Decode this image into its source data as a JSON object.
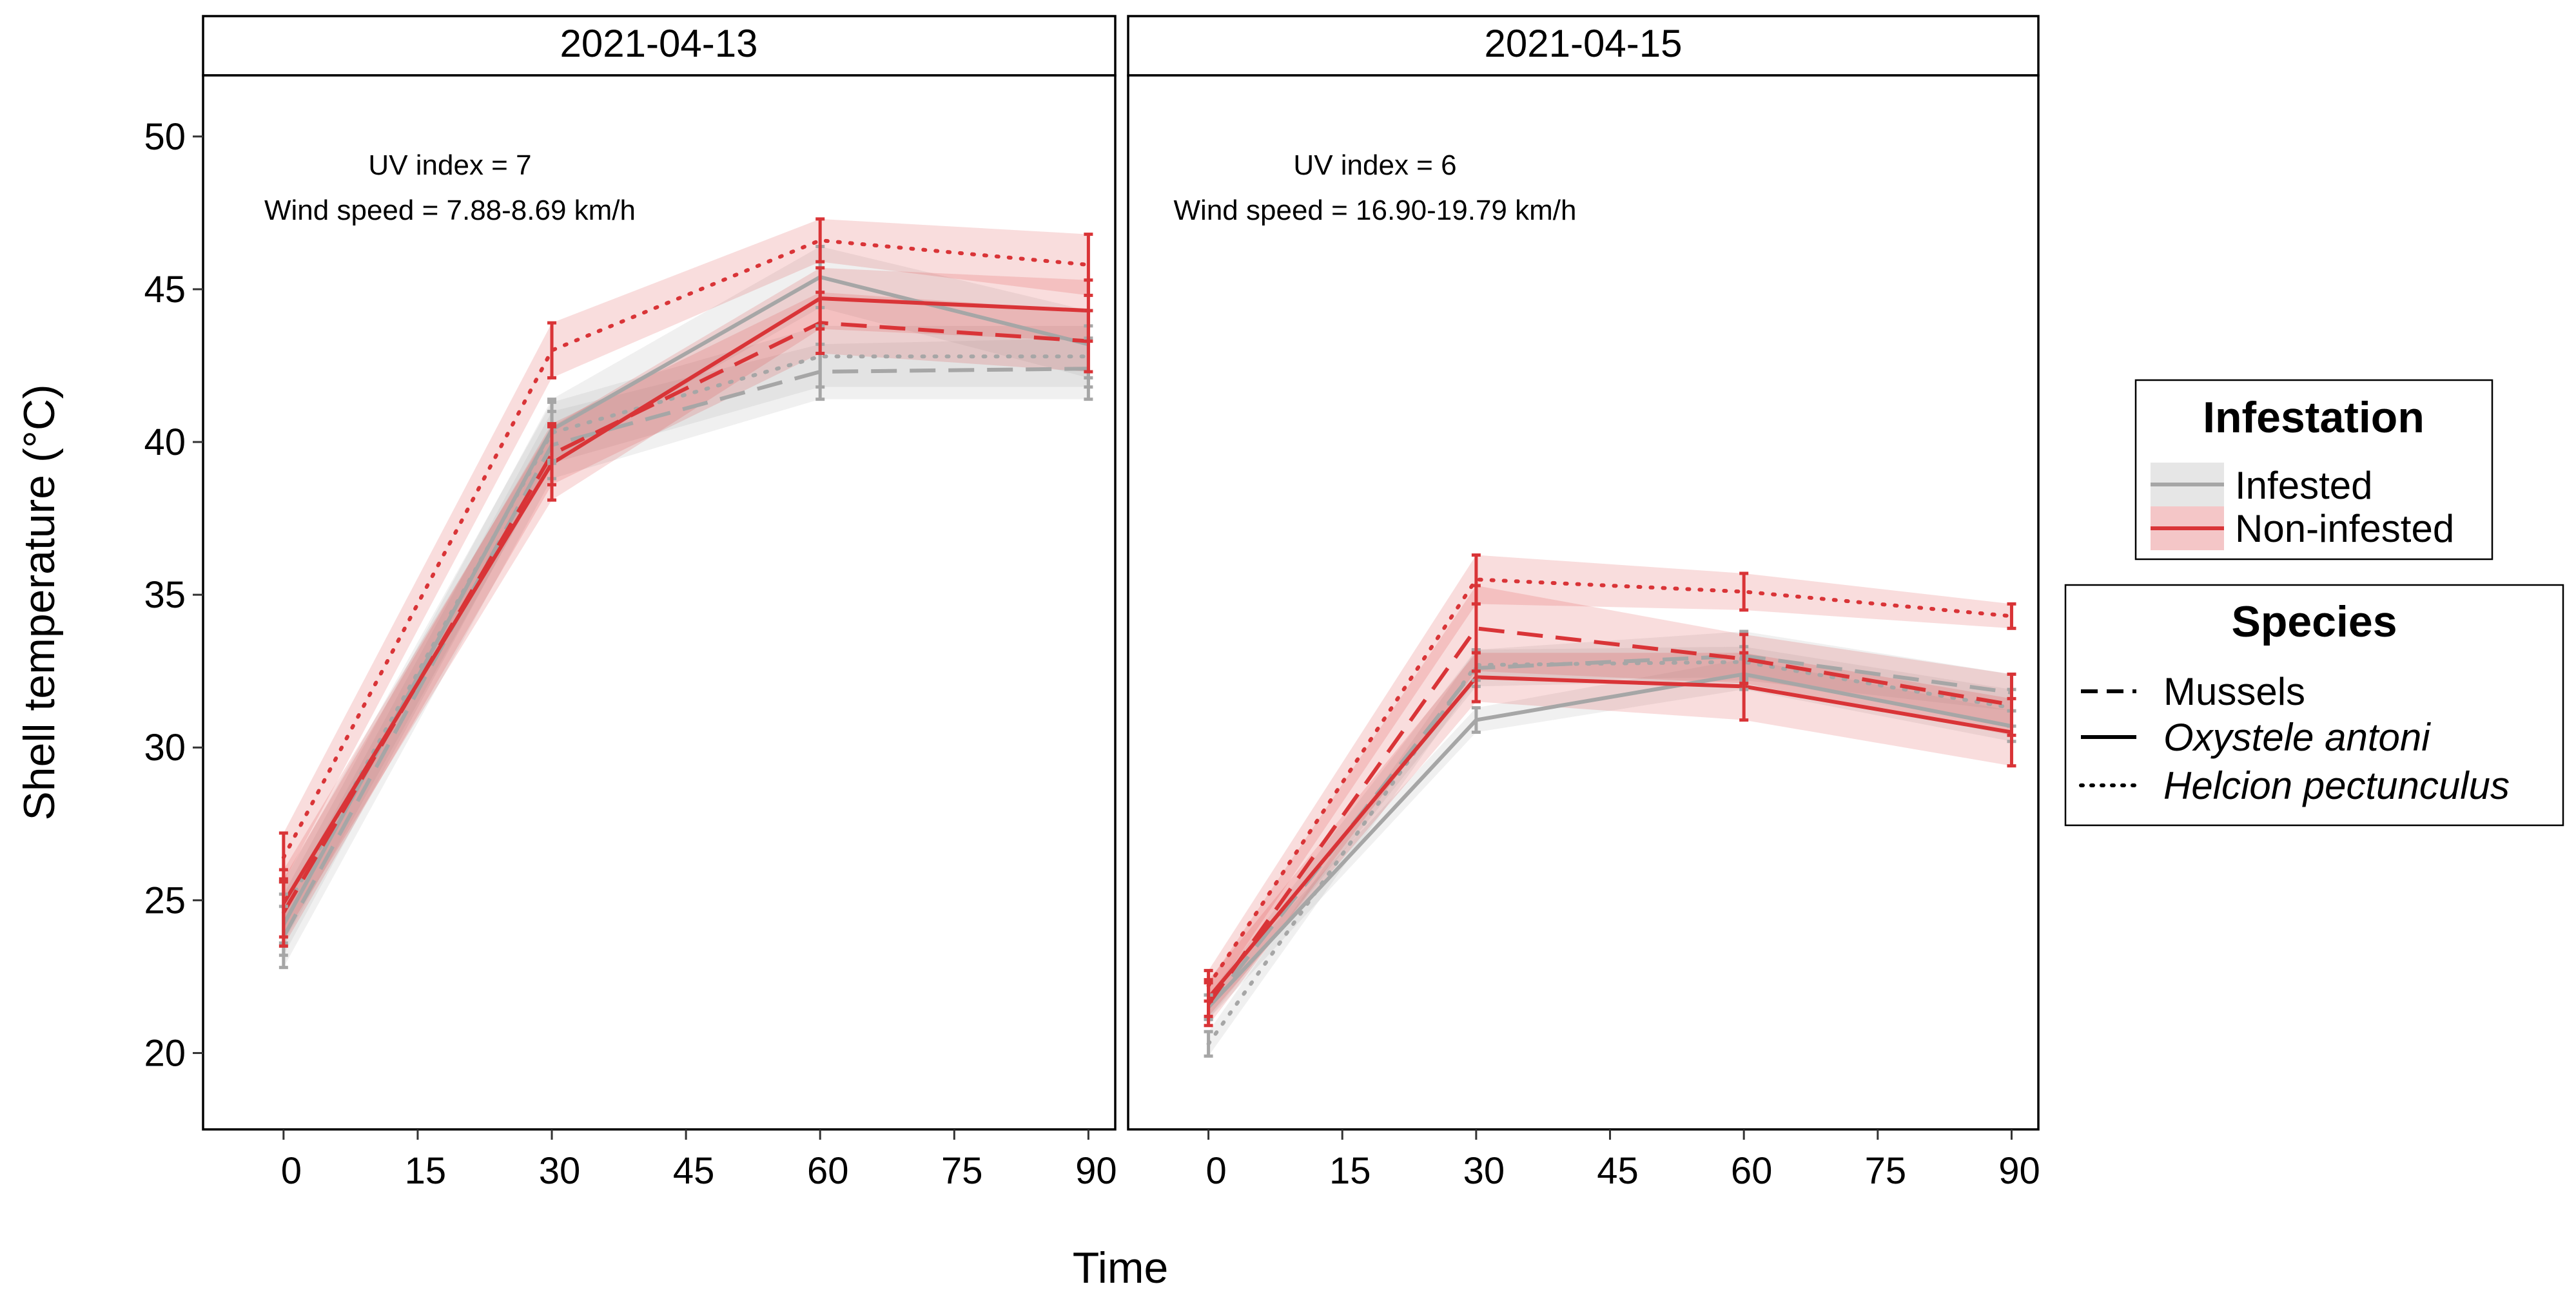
{
  "chart_data": {
    "type": "line",
    "ylabel": "Shell temperature (°C)",
    "xlabel": "Time",
    "xlim": [
      -9,
      93
    ],
    "ylim": [
      17.5,
      52
    ],
    "xticks": [
      0,
      15,
      30,
      45,
      60,
      75,
      90
    ],
    "yticks": [
      20,
      25,
      30,
      35,
      40,
      45,
      50
    ],
    "colors": {
      "Infested": "#a6a6a6",
      "Non-infested": "#d93437"
    },
    "legends": {
      "infestation": {
        "title": "Infestation",
        "entries": [
          "Infested",
          "Non-infested"
        ]
      },
      "species": {
        "title": "Species",
        "entries": [
          {
            "label": "Mussels",
            "italic": false,
            "linetype": "dashed"
          },
          {
            "label": "Oxystele antoni",
            "italic": true,
            "linetype": "solid"
          },
          {
            "label": "Helcion pectunculus",
            "italic": true,
            "linetype": "dotted"
          }
        ]
      }
    },
    "panels": [
      {
        "title": "2021-04-13",
        "annotations": [
          "UV index = 7",
          "Wind speed = 7.88-8.69 km/h"
        ],
        "series": [
          {
            "infestation": "Infested",
            "species": "Mussels",
            "x": [
              0,
              30,
              60,
              90
            ],
            "y": [
              23.8,
              39.9,
              42.3,
              42.4
            ],
            "ci": [
              1.0,
              1.1,
              0.9,
              1.0
            ]
          },
          {
            "infestation": "Infested",
            "species": "Oxystele antoni",
            "x": [
              0,
              30,
              60,
              90
            ],
            "y": [
              24.2,
              40.4,
              45.4,
              43.2
            ],
            "ci": [
              1.0,
              1.0,
              1.0,
              1.1
            ]
          },
          {
            "infestation": "Infested",
            "species": "Helcion pectunculus",
            "x": [
              0,
              30,
              60,
              90
            ],
            "y": [
              24.6,
              40.3,
              42.8,
              42.8
            ],
            "ci": [
              1.0,
              1.0,
              1.0,
              1.0
            ]
          },
          {
            "infestation": "Non-infested",
            "species": "Mussels",
            "x": [
              0,
              30,
              60,
              90
            ],
            "y": [
              24.6,
              39.6,
              43.9,
              43.3
            ],
            "ci": [
              1.1,
              1.0,
              1.0,
              1.0
            ]
          },
          {
            "infestation": "Non-infested",
            "species": "Oxystele antoni",
            "x": [
              0,
              30,
              60,
              90
            ],
            "y": [
              24.9,
              39.3,
              44.7,
              44.3
            ],
            "ci": [
              1.1,
              1.2,
              1.0,
              1.0
            ]
          },
          {
            "infestation": "Non-infested",
            "species": "Helcion pectunculus",
            "x": [
              0,
              30,
              60,
              90
            ],
            "y": [
              26.4,
              43.0,
              46.6,
              45.8
            ],
            "ci": [
              0.8,
              0.9,
              0.7,
              1.0
            ]
          }
        ]
      },
      {
        "title": "2021-04-15",
        "annotations": [
          "UV index = 6",
          "Wind speed = 16.90-19.79 km/h"
        ],
        "series": [
          {
            "infestation": "Infested",
            "species": "Mussels",
            "x": [
              0,
              30,
              60,
              90
            ],
            "y": [
              21.5,
              32.6,
              33.0,
              31.8
            ],
            "ci": [
              0.4,
              0.6,
              0.8,
              0.6
            ]
          },
          {
            "infestation": "Infested",
            "species": "Oxystele antoni",
            "x": [
              0,
              30,
              60,
              90
            ],
            "y": [
              21.5,
              30.9,
              32.4,
              30.7
            ],
            "ci": [
              0.4,
              0.4,
              0.5,
              0.5
            ]
          },
          {
            "infestation": "Infested",
            "species": "Helcion pectunculus",
            "x": [
              0,
              30,
              60,
              90
            ],
            "y": [
              20.3,
              32.7,
              32.8,
              31.3
            ],
            "ci": [
              0.4,
              0.5,
              0.5,
              0.6
            ]
          },
          {
            "infestation": "Non-infested",
            "species": "Mussels",
            "x": [
              0,
              30,
              60,
              90
            ],
            "y": [
              21.6,
              33.9,
              32.9,
              31.4
            ],
            "ci": [
              0.7,
              1.4,
              0.8,
              1.0
            ]
          },
          {
            "infestation": "Non-infested",
            "species": "Oxystele antoni",
            "x": [
              0,
              30,
              60,
              90
            ],
            "y": [
              21.8,
              32.3,
              32.0,
              30.5
            ],
            "ci": [
              0.6,
              0.8,
              1.1,
              1.1
            ]
          },
          {
            "infestation": "Non-infested",
            "species": "Helcion pectunculus",
            "x": [
              0,
              30,
              60,
              90
            ],
            "y": [
              22.2,
              35.5,
              35.1,
              34.3
            ],
            "ci": [
              0.5,
              0.8,
              0.6,
              0.4
            ]
          }
        ]
      }
    ]
  }
}
